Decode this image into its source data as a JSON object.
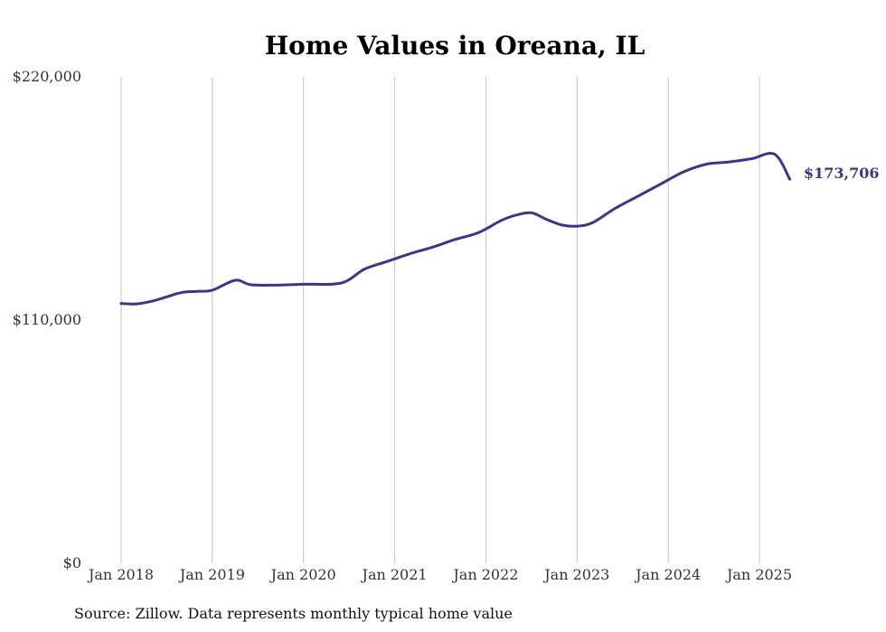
{
  "chart_data": {
    "type": "line",
    "title": "Home Values in Oreana, IL",
    "xlabel": "",
    "ylabel": "",
    "ylim": [
      0,
      220000
    ],
    "y_ticks": [
      {
        "value": 0,
        "label": "$0"
      },
      {
        "value": 110000,
        "label": "$110,000"
      },
      {
        "value": 220000,
        "label": "$220,000"
      }
    ],
    "x_ticks": [
      {
        "value": "2018-01",
        "label": "Jan 2018"
      },
      {
        "value": "2019-01",
        "label": "Jan 2019"
      },
      {
        "value": "2020-01",
        "label": "Jan 2020"
      },
      {
        "value": "2021-01",
        "label": "Jan 2021"
      },
      {
        "value": "2022-01",
        "label": "Jan 2022"
      },
      {
        "value": "2023-01",
        "label": "Jan 2023"
      },
      {
        "value": "2024-01",
        "label": "Jan 2024"
      },
      {
        "value": "2025-01",
        "label": "Jan 2025"
      }
    ],
    "grid": {
      "vertical": true,
      "horizontal": false
    },
    "line_color": "#3b3591",
    "series": [
      {
        "x": [
          "2018-01",
          "2018-03",
          "2018-05",
          "2018-07",
          "2018-09",
          "2018-11",
          "2019-01",
          "2019-04",
          "2019-06",
          "2019-09",
          "2020-01",
          "2020-06",
          "2020-09",
          "2020-12",
          "2021-03",
          "2021-06",
          "2021-09",
          "2021-12",
          "2022-03",
          "2022-05",
          "2022-07",
          "2022-09",
          "2022-11",
          "2023-01",
          "2023-03",
          "2023-06",
          "2023-09",
          "2023-12",
          "2024-03",
          "2024-06",
          "2024-09",
          "2024-12",
          "2025-03",
          "2025-05"
        ],
        "values": [
          117500,
          117300,
          118500,
          120500,
          122500,
          123000,
          123500,
          128000,
          126000,
          125800,
          126200,
          126800,
          133000,
          136500,
          140000,
          143000,
          146500,
          149500,
          155000,
          157500,
          158500,
          155500,
          153000,
          152500,
          154000,
          160500,
          166000,
          171500,
          177000,
          180500,
          181500,
          183000,
          185000,
          173706
        ]
      }
    ],
    "end_label": "$173,706"
  },
  "source": "Source: Zillow. Data represents monthly typical home value"
}
